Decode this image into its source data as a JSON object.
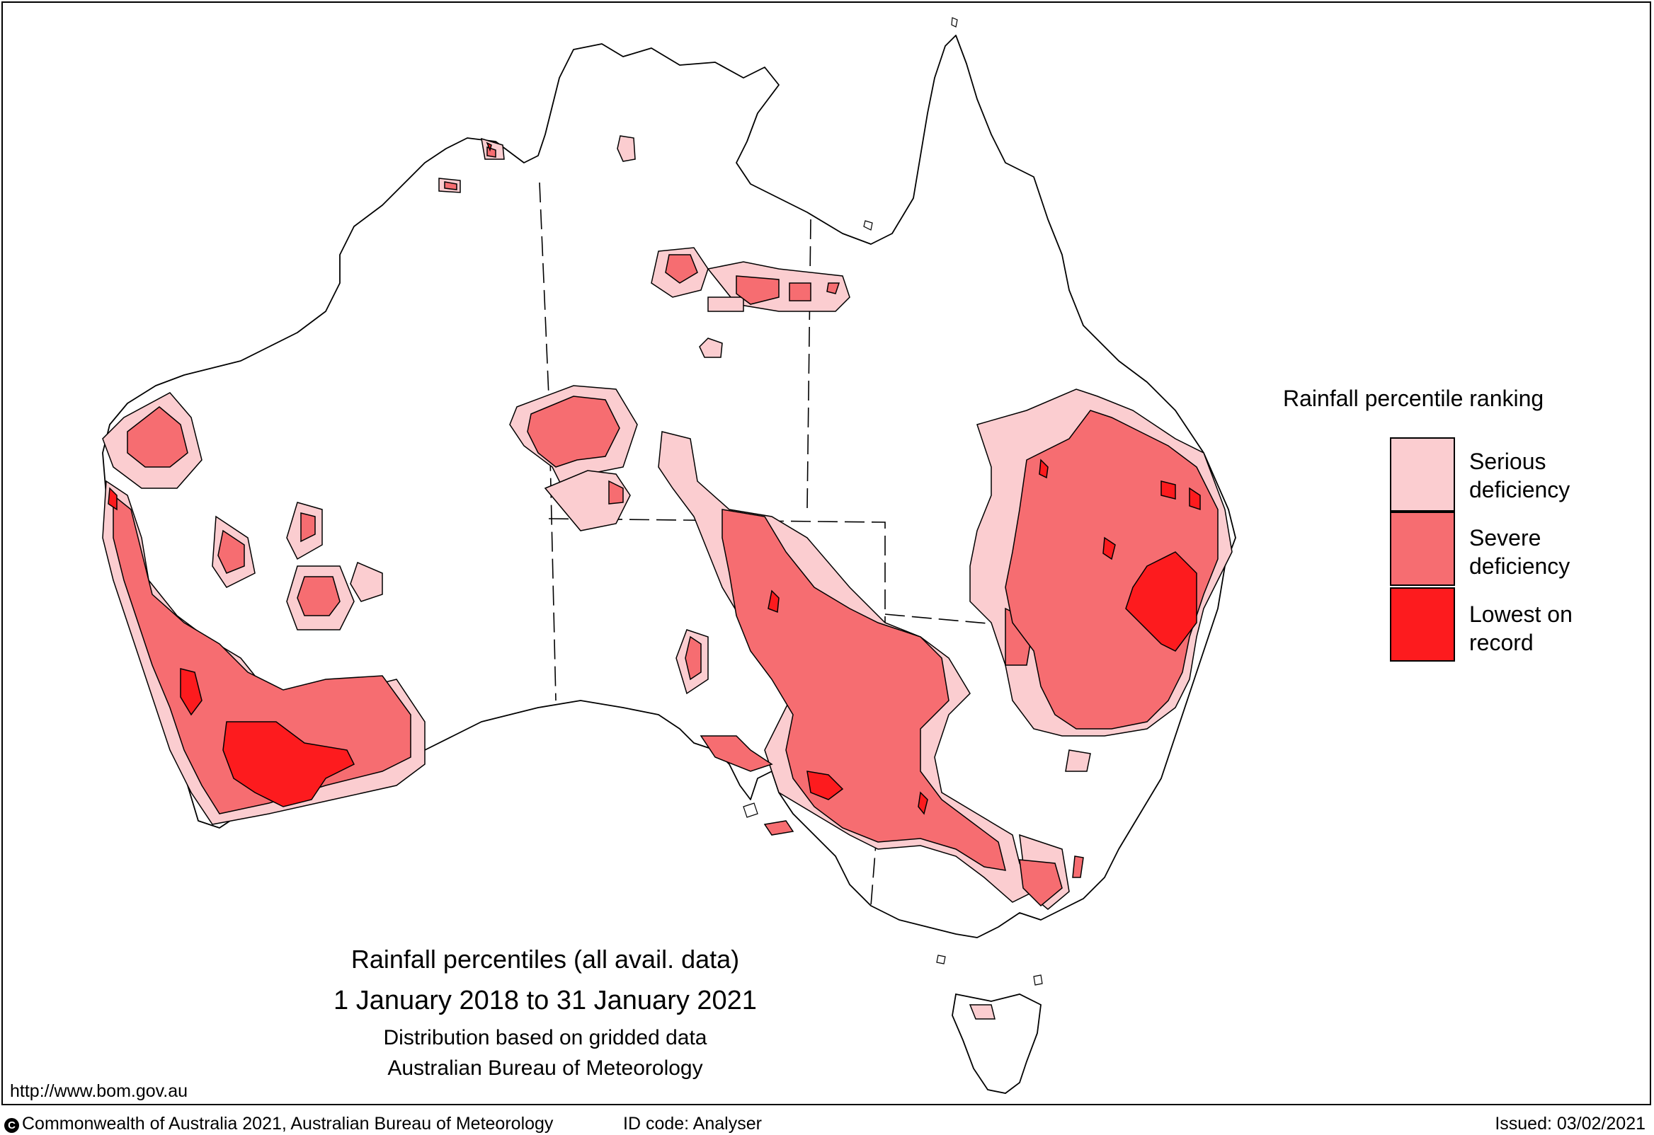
{
  "legend": {
    "title": "Rainfall percentile ranking",
    "items": [
      {
        "label_line1": "Serious",
        "label_line2": "deficiency",
        "color": "#fbcdd0"
      },
      {
        "label_line1": "Severe",
        "label_line2": "deficiency",
        "color": "#f66d71"
      },
      {
        "label_line1": "Lowest on",
        "label_line2": "record",
        "color": "#fd1b1e"
      }
    ]
  },
  "caption": {
    "title": "Rainfall percentiles (all avail. data)",
    "period": "1 January 2018 to 31 January 2021",
    "distribution": "Distribution based on gridded data",
    "agency": "Australian Bureau of Meteorology"
  },
  "footer": {
    "url": "http://www.bom.gov.au",
    "copyright_symbol": "C",
    "copyright": "Commonwealth of Australia 2021, Australian Bureau of Meteorology",
    "id_code": "ID code: Analyser",
    "issued": "Issued: 03/02/2021"
  },
  "icons": {
    "copyright": "copyright-icon"
  }
}
